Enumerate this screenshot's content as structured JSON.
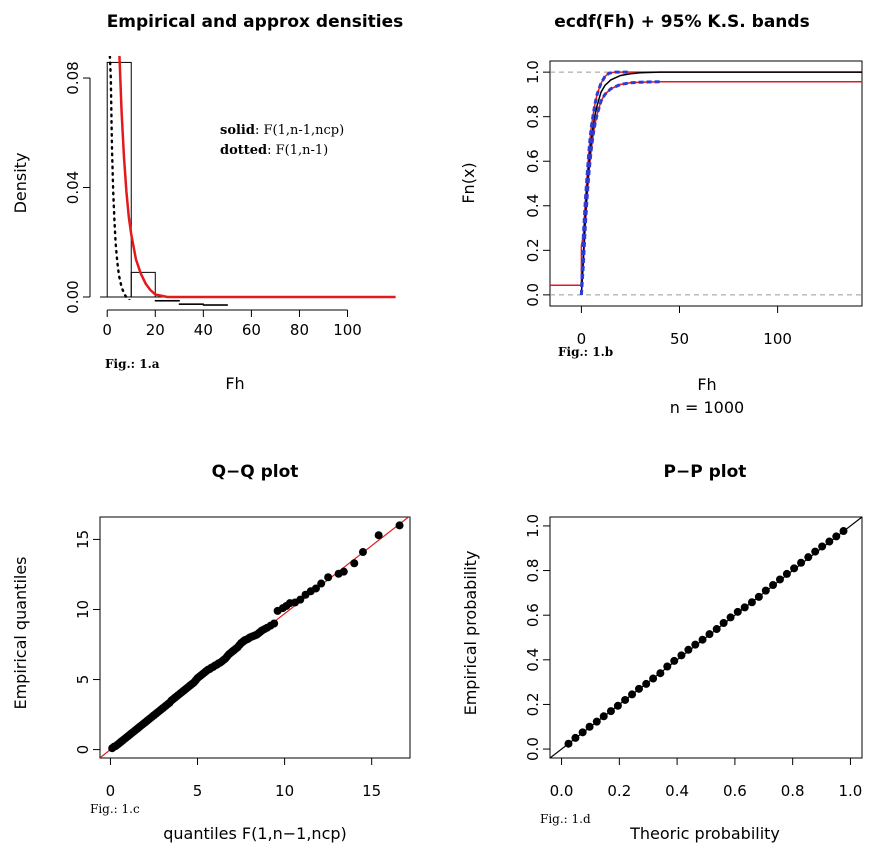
{
  "colors": {
    "red": "#e31a1c",
    "blue": "#2d3bd6",
    "black": "#000000",
    "grey": "#9a9a9a"
  },
  "chart_data": [
    {
      "type": "bar",
      "title": "Empirical and approx densities",
      "xlabel": "Fh",
      "ylabel": "Density",
      "fig_label": "Fig.: 1.a",
      "xlim": [
        -3,
        126
      ],
      "ylim": [
        0,
        0.086
      ],
      "xticks": [
        0,
        20,
        40,
        60,
        80,
        100
      ],
      "yticks": [
        0.0,
        0.04,
        0.08
      ],
      "ytick_labels": [
        "0.00",
        "0.04",
        "0.08"
      ],
      "histogram": {
        "bins": [
          [
            0,
            10
          ],
          [
            10,
            20
          ],
          [
            20,
            30
          ],
          [
            30,
            40
          ],
          [
            40,
            50
          ]
        ],
        "density": [
          0.0855,
          0.0115,
          0.0016,
          0.0004,
          0.0001
        ]
      },
      "series": [
        {
          "name": "solid",
          "curve": "F(1,n-1,ncp)",
          "style": "solid",
          "color": "red",
          "x": [
            5,
            6,
            7,
            8,
            9,
            10,
            12,
            14,
            16,
            18,
            20,
            25,
            30,
            35,
            40,
            50,
            60,
            70,
            80,
            90,
            100,
            110,
            120
          ],
          "y": [
            0.09,
            0.068,
            0.052,
            0.04,
            0.031,
            0.025,
            0.016,
            0.011,
            0.0075,
            0.0052,
            0.0037,
            0.0017,
            0.0008,
            0.0004,
            0.0002,
            6e-05,
            2e-05,
            1e-05,
            0.0,
            0.0,
            0.0,
            0.0,
            0.0
          ]
        },
        {
          "name": "dotted",
          "curve": "F(1,n-1)",
          "style": "dotted",
          "color": "black",
          "x": [
            1,
            1.5,
            2,
            2.5,
            3,
            3.5,
            4,
            4.5,
            5,
            6,
            7,
            8,
            9,
            10,
            12,
            14,
            16,
            20,
            25,
            30
          ],
          "y": [
            0.09,
            0.08,
            0.055,
            0.04,
            0.03,
            0.022,
            0.017,
            0.013,
            0.01,
            0.0063,
            0.0041,
            0.0027,
            0.0018,
            0.0012,
            0.0006,
            0.0003,
            0.00015,
            4e-05,
            1e-05,
            0.0
          ]
        }
      ],
      "legend": [
        {
          "key": "solid",
          "text": ": F(1,n-1,ncp)"
        },
        {
          "key": "dotted",
          "text": ": F(1,n-1)"
        }
      ]
    },
    {
      "type": "line",
      "title": "ecdf(Fh) + 95% K.S. bands",
      "xlabel": "Fh",
      "ylabel": "Fn(x)",
      "subtitle": "n =  1000",
      "fig_label": "Fig.: 1.b",
      "xlim": [
        -16,
        143
      ],
      "ylim": [
        -0.05,
        1.05
      ],
      "xticks": [
        0,
        50,
        100
      ],
      "yticks": [
        0.0,
        0.2,
        0.4,
        0.6,
        0.8,
        1.0
      ],
      "ytick_labels": [
        "0.0",
        "0.2",
        "0.4",
        "0.6",
        "0.8",
        "1.0"
      ],
      "ref_lines": [
        0,
        1
      ],
      "series": [
        {
          "name": "ecdf",
          "color": "black",
          "x": [
            0,
            1,
            2,
            3,
            4,
            5,
            6,
            7,
            8,
            10,
            12,
            15,
            20,
            25,
            30,
            40,
            60,
            143
          ],
          "y": [
            0,
            0.18,
            0.35,
            0.49,
            0.6,
            0.69,
            0.76,
            0.81,
            0.85,
            0.91,
            0.94,
            0.965,
            0.985,
            0.993,
            0.997,
            1.0,
            1.0,
            1.0
          ]
        },
        {
          "name": "upper band",
          "color": "red",
          "x": [
            -16,
            0,
            0.01,
            1,
            2,
            3,
            4,
            5,
            6,
            7,
            8,
            10,
            12,
            14,
            17,
            143
          ],
          "y": [
            0.043,
            0.043,
            0.22,
            0.27,
            0.42,
            0.55,
            0.66,
            0.75,
            0.81,
            0.86,
            0.9,
            0.95,
            0.98,
            0.995,
            1.0,
            1.0
          ]
        },
        {
          "name": "lower band",
          "color": "red",
          "x": [
            0,
            1,
            2,
            3,
            4,
            5,
            6,
            7,
            8,
            10,
            12,
            15,
            20,
            25,
            30,
            40,
            143
          ],
          "y": [
            0,
            0.14,
            0.31,
            0.45,
            0.56,
            0.65,
            0.72,
            0.77,
            0.81,
            0.87,
            0.9,
            0.925,
            0.945,
            0.952,
            0.955,
            0.957,
            0.957
          ]
        },
        {
          "name": "approx upper",
          "color": "blue",
          "dashed": true,
          "x": [
            0,
            1,
            2,
            3,
            4,
            5,
            6,
            7,
            8,
            10,
            12,
            14,
            17,
            25
          ],
          "y": [
            0,
            0.27,
            0.42,
            0.55,
            0.66,
            0.75,
            0.81,
            0.86,
            0.9,
            0.95,
            0.98,
            0.995,
            1.0,
            1.0
          ]
        },
        {
          "name": "approx lower",
          "color": "blue",
          "dashed": true,
          "x": [
            0,
            1,
            2,
            3,
            4,
            5,
            6,
            7,
            8,
            10,
            12,
            15,
            20,
            25,
            30,
            40
          ],
          "y": [
            0,
            0.14,
            0.31,
            0.45,
            0.56,
            0.65,
            0.72,
            0.77,
            0.81,
            0.87,
            0.9,
            0.925,
            0.945,
            0.952,
            0.955,
            0.957
          ]
        }
      ]
    },
    {
      "type": "scatter",
      "title": "Q−Q plot",
      "xlabel": "quantiles F(1,n−1,ncp)",
      "ylabel": "Empirical quantiles",
      "fig_label": "Fig.: 1.c",
      "xlim": [
        -0.6,
        17.2
      ],
      "ylim": [
        -0.6,
        16.6
      ],
      "xticks": [
        0,
        5,
        10,
        15
      ],
      "yticks": [
        0,
        5,
        10,
        15
      ],
      "reference_line": {
        "intercept": 0,
        "slope": 0.97,
        "color": "red"
      },
      "points": [
        [
          0.1,
          0.1
        ],
        [
          0.2,
          0.2
        ],
        [
          0.3,
          0.25
        ],
        [
          0.4,
          0.35
        ],
        [
          0.5,
          0.45
        ],
        [
          0.6,
          0.55
        ],
        [
          0.7,
          0.65
        ],
        [
          0.8,
          0.75
        ],
        [
          0.9,
          0.85
        ],
        [
          1.0,
          0.95
        ],
        [
          1.1,
          1.05
        ],
        [
          1.2,
          1.15
        ],
        [
          1.3,
          1.25
        ],
        [
          1.4,
          1.35
        ],
        [
          1.5,
          1.45
        ],
        [
          1.6,
          1.55
        ],
        [
          1.7,
          1.65
        ],
        [
          1.8,
          1.75
        ],
        [
          1.9,
          1.85
        ],
        [
          2.0,
          1.95
        ],
        [
          2.1,
          2.05
        ],
        [
          2.2,
          2.15
        ],
        [
          2.3,
          2.25
        ],
        [
          2.4,
          2.35
        ],
        [
          2.5,
          2.45
        ],
        [
          2.6,
          2.55
        ],
        [
          2.7,
          2.65
        ],
        [
          2.8,
          2.75
        ],
        [
          2.9,
          2.85
        ],
        [
          3.0,
          2.95
        ],
        [
          3.1,
          3.05
        ],
        [
          3.2,
          3.15
        ],
        [
          3.3,
          3.25
        ],
        [
          3.4,
          3.35
        ],
        [
          3.5,
          3.5
        ],
        [
          3.6,
          3.6
        ],
        [
          3.7,
          3.7
        ],
        [
          3.8,
          3.8
        ],
        [
          3.9,
          3.9
        ],
        [
          4.0,
          4.0
        ],
        [
          4.1,
          4.1
        ],
        [
          4.2,
          4.2
        ],
        [
          4.3,
          4.3
        ],
        [
          4.4,
          4.4
        ],
        [
          4.5,
          4.5
        ],
        [
          4.6,
          4.6
        ],
        [
          4.7,
          4.7
        ],
        [
          4.8,
          4.8
        ],
        [
          4.9,
          4.95
        ],
        [
          5.0,
          5.1
        ],
        [
          5.1,
          5.2
        ],
        [
          5.2,
          5.3
        ],
        [
          5.3,
          5.4
        ],
        [
          5.4,
          5.5
        ],
        [
          5.5,
          5.6
        ],
        [
          5.6,
          5.7
        ],
        [
          5.7,
          5.75
        ],
        [
          5.8,
          5.85
        ],
        [
          5.9,
          5.9
        ],
        [
          6.0,
          6.0
        ],
        [
          6.1,
          6.05
        ],
        [
          6.2,
          6.15
        ],
        [
          6.3,
          6.2
        ],
        [
          6.4,
          6.3
        ],
        [
          6.5,
          6.4
        ],
        [
          6.6,
          6.5
        ],
        [
          6.7,
          6.65
        ],
        [
          6.8,
          6.8
        ],
        [
          6.9,
          6.9
        ],
        [
          7.0,
          7.0
        ],
        [
          7.1,
          7.1
        ],
        [
          7.2,
          7.2
        ],
        [
          7.3,
          7.3
        ],
        [
          7.4,
          7.45
        ],
        [
          7.5,
          7.6
        ],
        [
          7.6,
          7.7
        ],
        [
          7.7,
          7.8
        ],
        [
          7.8,
          7.85
        ],
        [
          7.9,
          7.9
        ],
        [
          8.0,
          8.0
        ],
        [
          8.1,
          8.05
        ],
        [
          8.2,
          8.1
        ],
        [
          8.3,
          8.15
        ],
        [
          8.4,
          8.2
        ],
        [
          8.5,
          8.3
        ],
        [
          8.6,
          8.4
        ],
        [
          8.7,
          8.5
        ],
        [
          8.85,
          8.6
        ],
        [
          9.0,
          8.7
        ],
        [
          9.2,
          8.85
        ],
        [
          9.4,
          9.0
        ],
        [
          9.6,
          9.9
        ],
        [
          9.9,
          10.1
        ],
        [
          10.1,
          10.25
        ],
        [
          10.3,
          10.45
        ],
        [
          10.6,
          10.5
        ],
        [
          10.9,
          10.7
        ],
        [
          11.2,
          11.05
        ],
        [
          11.5,
          11.3
        ],
        [
          11.8,
          11.5
        ],
        [
          12.1,
          11.85
        ],
        [
          12.5,
          12.3
        ],
        [
          13.1,
          12.55
        ],
        [
          13.4,
          12.7
        ],
        [
          14.0,
          13.3
        ],
        [
          14.5,
          14.1
        ],
        [
          15.4,
          15.3
        ],
        [
          16.6,
          16.0
        ]
      ]
    },
    {
      "type": "scatter",
      "title": "P−P plot",
      "xlabel": "Theoric probability",
      "ylabel": "Empirical probability",
      "fig_label": "Fig.: 1.d",
      "xlim": [
        -0.04,
        1.04
      ],
      "ylim": [
        -0.04,
        1.04
      ],
      "xticks": [
        0.0,
        0.2,
        0.4,
        0.6,
        0.8,
        1.0
      ],
      "yticks": [
        0.0,
        0.2,
        0.4,
        0.6,
        0.8,
        1.0
      ],
      "tick_labels": [
        "0.0",
        "0.2",
        "0.4",
        "0.6",
        "0.8",
        "1.0"
      ],
      "reference_line": {
        "intercept": 0,
        "slope": 1,
        "color": "black"
      },
      "points": [
        [
          0.024,
          0.024
        ],
        [
          0.048,
          0.05
        ],
        [
          0.073,
          0.075
        ],
        [
          0.097,
          0.1
        ],
        [
          0.122,
          0.123
        ],
        [
          0.146,
          0.147
        ],
        [
          0.171,
          0.17
        ],
        [
          0.195,
          0.194
        ],
        [
          0.22,
          0.22
        ],
        [
          0.244,
          0.245
        ],
        [
          0.268,
          0.27
        ],
        [
          0.293,
          0.292
        ],
        [
          0.317,
          0.316
        ],
        [
          0.342,
          0.34
        ],
        [
          0.366,
          0.37
        ],
        [
          0.39,
          0.395
        ],
        [
          0.415,
          0.42
        ],
        [
          0.439,
          0.445
        ],
        [
          0.463,
          0.468
        ],
        [
          0.488,
          0.49
        ],
        [
          0.512,
          0.515
        ],
        [
          0.537,
          0.538
        ],
        [
          0.561,
          0.565
        ],
        [
          0.585,
          0.59
        ],
        [
          0.61,
          0.615
        ],
        [
          0.634,
          0.635
        ],
        [
          0.659,
          0.658
        ],
        [
          0.683,
          0.682
        ],
        [
          0.707,
          0.71
        ],
        [
          0.732,
          0.735
        ],
        [
          0.756,
          0.76
        ],
        [
          0.78,
          0.785
        ],
        [
          0.805,
          0.81
        ],
        [
          0.829,
          0.835
        ],
        [
          0.854,
          0.86
        ],
        [
          0.878,
          0.885
        ],
        [
          0.902,
          0.908
        ],
        [
          0.927,
          0.93
        ],
        [
          0.951,
          0.953
        ],
        [
          0.976,
          0.977
        ]
      ]
    }
  ]
}
